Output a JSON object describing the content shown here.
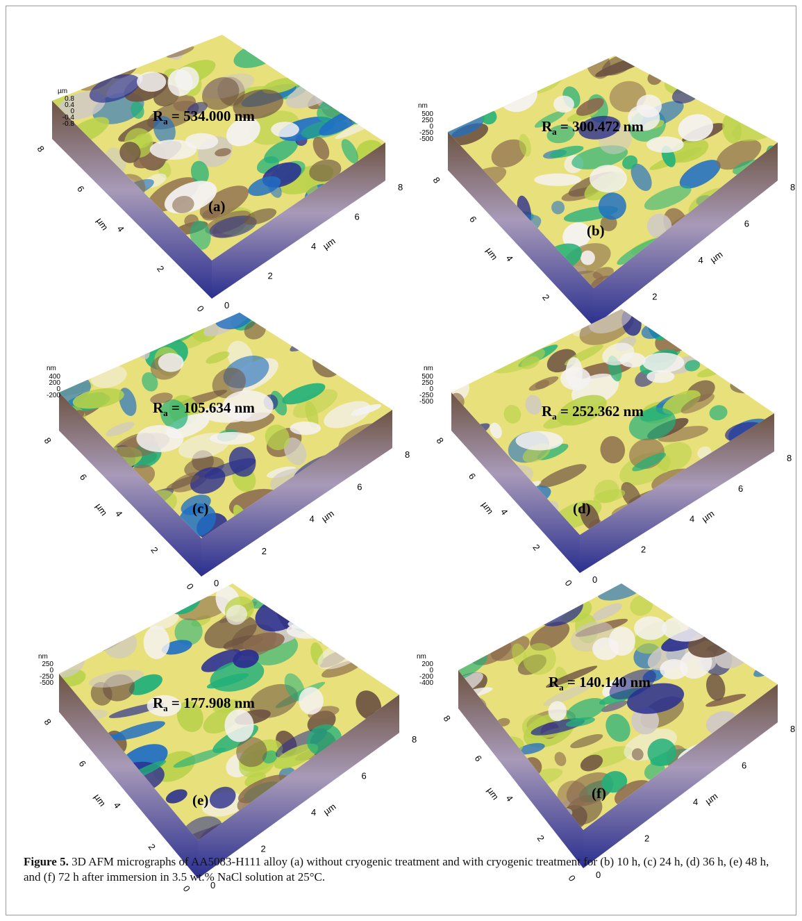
{
  "figure": {
    "caption_label": "Figure 5.",
    "caption_text": " 3D AFM micrographs of AA5083-H111 alloy (a) without cryogenic treatment and with cryogenic treatment for (b) 10 h, (c) 24 h, (d) 36 h, (e) 48 h, and (f) 72 h after immersion in 3.5 wt.% NaCl solution at 25°C."
  },
  "panels": [
    {
      "letter": "(a)",
      "ra_prefix": "R",
      "ra_sub": "a",
      "ra_value": " = 534.000 nm",
      "z_unit": "µm",
      "z_ticks": [
        "0.8",
        "0.4",
        "0",
        "-0.4",
        "-0.8"
      ],
      "axis_unit": "µm",
      "x_ticks": [
        "0",
        "2",
        "4",
        "6",
        "8"
      ],
      "y_ticks": [
        "0",
        "2",
        "4",
        "6",
        "8"
      ]
    },
    {
      "letter": "(b)",
      "ra_prefix": "R",
      "ra_sub": "a",
      "ra_value": " = 300.472 nm",
      "z_unit": "nm",
      "z_ticks": [
        "500",
        "250",
        "0",
        "-250",
        "-500"
      ],
      "axis_unit": "µm",
      "x_ticks": [
        "0",
        "2",
        "4",
        "6",
        "8"
      ],
      "y_ticks": [
        "0",
        "2",
        "4",
        "6",
        "8"
      ]
    },
    {
      "letter": "(c)",
      "ra_prefix": "R",
      "ra_sub": "a",
      "ra_value": " = 105.634 nm",
      "z_unit": "nm",
      "z_ticks": [
        "400",
        "200",
        "0",
        "-200"
      ],
      "axis_unit": "µm",
      "x_ticks": [
        "0",
        "2",
        "4",
        "6",
        "8"
      ],
      "y_ticks": [
        "0",
        "2",
        "4",
        "6",
        "8"
      ]
    },
    {
      "letter": "(d)",
      "ra_prefix": "R",
      "ra_sub": "a",
      "ra_value": " = 252.362 nm",
      "z_unit": "nm",
      "z_ticks": [
        "500",
        "250",
        "0",
        "-250",
        "-500"
      ],
      "axis_unit": "µm",
      "x_ticks": [
        "0",
        "2",
        "4",
        "6",
        "8"
      ],
      "y_ticks": [
        "0",
        "2",
        "4",
        "6",
        "8"
      ]
    },
    {
      "letter": "(e)",
      "ra_prefix": "R",
      "ra_sub": "a",
      "ra_value": " = 177.908 nm",
      "z_unit": "nm",
      "z_ticks": [
        "250",
        "0",
        "-250",
        "-500"
      ],
      "axis_unit": "µm",
      "x_ticks": [
        "0",
        "2",
        "4",
        "6",
        "8"
      ],
      "y_ticks": [
        "0",
        "2",
        "4",
        "6",
        "8"
      ]
    },
    {
      "letter": "(f)",
      "ra_prefix": "R",
      "ra_sub": "a",
      "ra_value": " = 140.140 nm",
      "z_unit": "nm",
      "z_ticks": [
        "200",
        "0",
        "-200",
        "-400"
      ],
      "axis_unit": "µm",
      "x_ticks": [
        "0",
        "2",
        "4",
        "6",
        "8"
      ],
      "y_ticks": [
        "0",
        "2",
        "4",
        "6",
        "8"
      ]
    }
  ],
  "colormap": [
    "#2a2f8f",
    "#1f6fc4",
    "#22b07a",
    "#b9d24a",
    "#e8e07a",
    "#8a6a4e",
    "#6e5443",
    "#cfc9c6",
    "#f4f2f2"
  ]
}
